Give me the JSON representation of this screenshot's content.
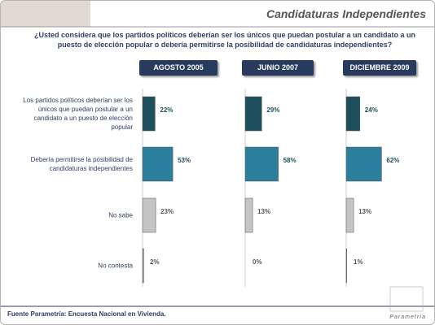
{
  "header": {
    "title": "Candidaturas Independientes",
    "question": "¿Usted considera que los partidos políticos deberían ser los únicos que puedan postular a un candidato a un puesto de elección popular o debería permitirse la posibilidad de candidaturas independientes?"
  },
  "chart_data": [
    {
      "type": "bar",
      "title": "AGOSTO 2005",
      "categories": [
        "Los partidos políticos deberían ser los únicos que puedan postular a un candidato a un puesto de elección popular",
        "Debería permitirse la posibilidad de candidaturas independientes",
        "No sabe",
        "No contesta"
      ],
      "values": [
        22,
        53,
        23,
        2
      ],
      "value_labels": [
        "22%",
        "53%",
        "23%",
        "2%"
      ],
      "colors": [
        "#1e4f5c",
        "#2b7f9c",
        "#c4c4c4",
        "#9a9a9a"
      ],
      "xlim": [
        0,
        100
      ]
    },
    {
      "type": "bar",
      "title": "JUNIO 2007",
      "values": [
        29,
        58,
        13,
        0
      ],
      "value_labels": [
        "29%",
        "58%",
        "13%",
        "0%"
      ],
      "colors": [
        "#1e4f5c",
        "#2b7f9c",
        "#c4c4c4",
        "#9a9a9a"
      ],
      "xlim": [
        0,
        100
      ]
    },
    {
      "type": "bar",
      "title": "DICIEMBRE 2009",
      "values": [
        24,
        62,
        13,
        1
      ],
      "value_labels": [
        "24%",
        "62%",
        "13%",
        "1%"
      ],
      "colors": [
        "#1e4f5c",
        "#2b7f9c",
        "#c4c4c4",
        "#9a9a9a"
      ],
      "xlim": [
        0,
        100
      ]
    }
  ],
  "footer": {
    "source": "Fuente Parametría: Encuesta Nacional en Vivienda.",
    "logo": "Parametría"
  }
}
